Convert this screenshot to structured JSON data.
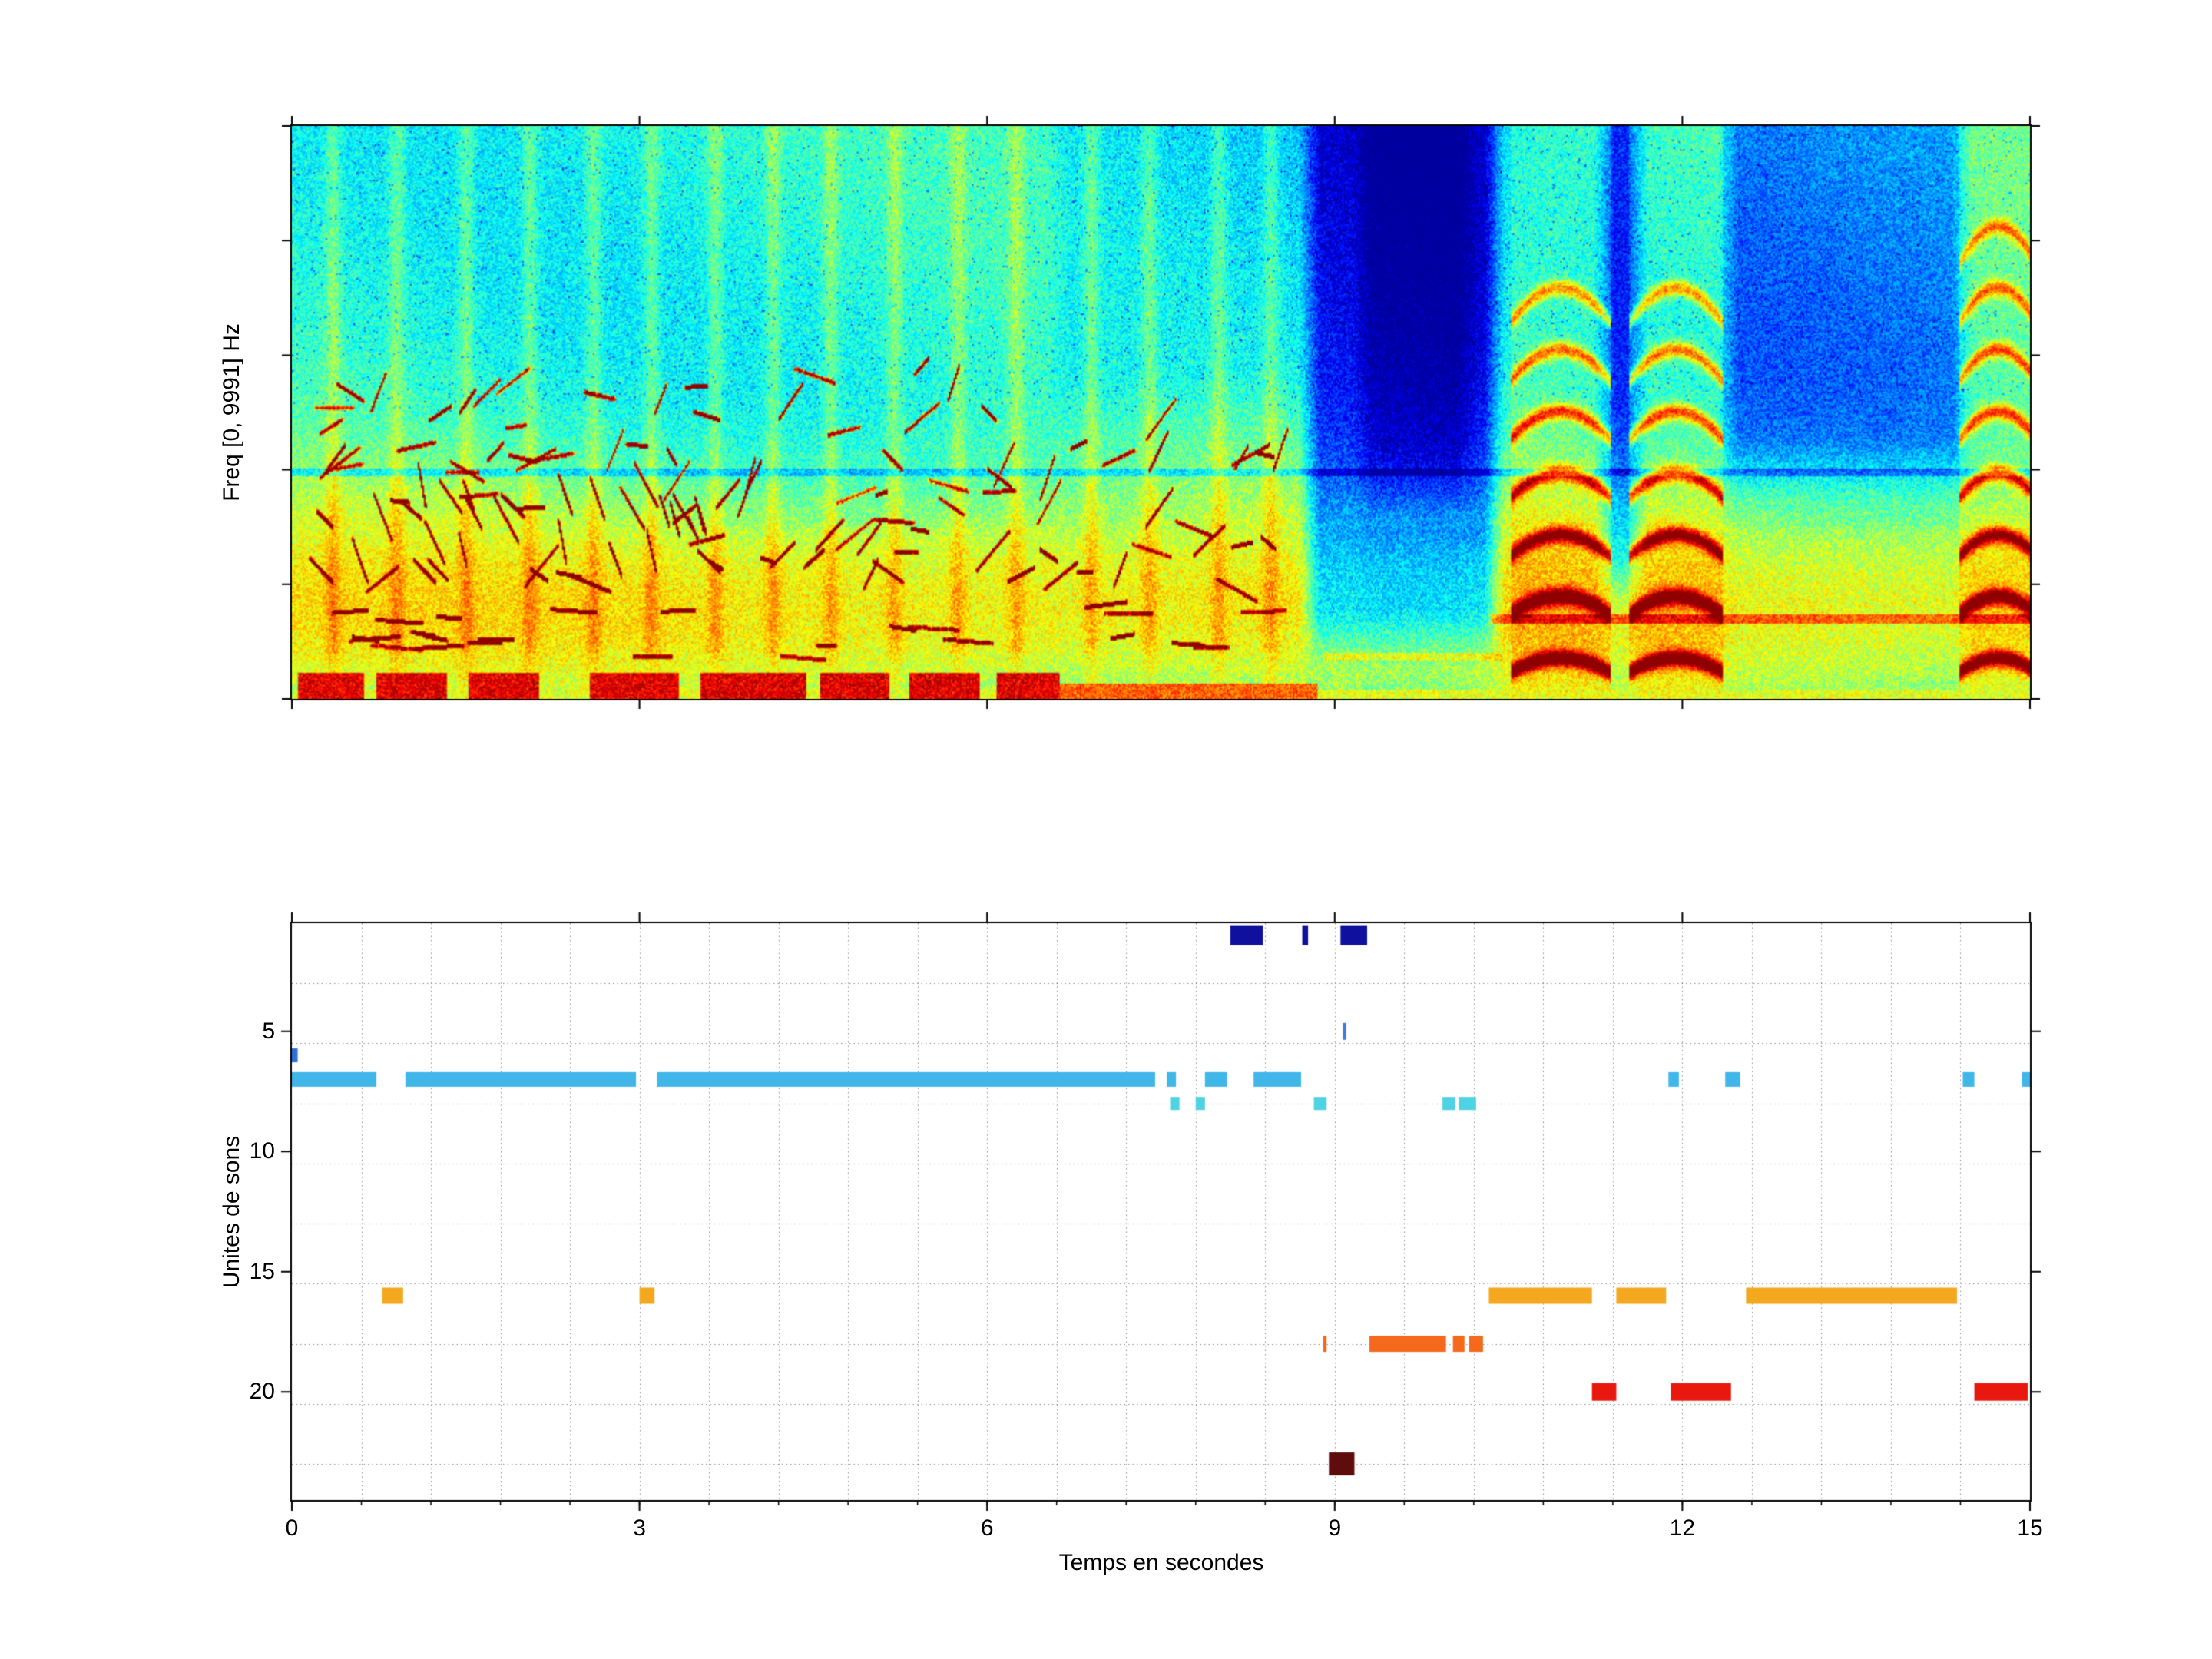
{
  "figure": {
    "background": "#ffffff"
  },
  "chart_data": [
    {
      "type": "heatmap",
      "name": "spectrogram",
      "ylabel": "Freq [0, 9991] Hz",
      "xlim": [
        0,
        15
      ],
      "freq_range_hz": [
        0,
        9991
      ],
      "colormap": "jet",
      "xticks": [
        0,
        3,
        6,
        9,
        12,
        15
      ],
      "quiet_zones": [
        {
          "t": [
            8.78,
            10.38
          ],
          "fmin": 0.03,
          "depth": 0.3
        },
        {
          "t": [
            9.25,
            10.15
          ],
          "fmin": 0.3,
          "depth": 0.1
        },
        {
          "t": [
            11.33,
            11.62
          ],
          "fmin": 0.12,
          "depth": 0.22
        },
        {
          "t": [
            12.4,
            14.42
          ],
          "fmin": 0.33,
          "depth": 0.16
        },
        {
          "t": [
            6.6,
            8.75
          ],
          "fmin": 0.45,
          "depth": 0.06
        }
      ],
      "harmonic_stacks": [
        {
          "t_center": 10.95,
          "half_width": 0.43,
          "n_arcs": 7
        },
        {
          "t_center": 11.95,
          "half_width": 0.4,
          "n_arcs": 7
        },
        {
          "t_center": 14.73,
          "half_width": 0.33,
          "n_arcs": 8
        }
      ],
      "bottom_band_ranges": [
        [
          0.05,
          0.62
        ],
        [
          0.72,
          1.33
        ],
        [
          1.52,
          2.13
        ],
        [
          2.56,
          3.33
        ],
        [
          3.52,
          4.43
        ],
        [
          4.55,
          5.15
        ],
        [
          5.33,
          5.93
        ],
        [
          6.08,
          6.62
        ]
      ],
      "vertical_streaks": [
        0.35,
        0.9,
        1.5,
        2.05,
        2.6,
        3.1,
        3.65,
        4.15,
        4.65,
        5.2,
        5.75,
        6.25,
        6.9,
        7.4,
        8.0,
        8.45
      ]
    },
    {
      "type": "segments",
      "name": "unites-de-sons",
      "xlabel": "Temps en secondes",
      "ylabel": "Unites de sons",
      "xlim": [
        0,
        15
      ],
      "ylim": [
        0.5,
        24.5
      ],
      "y_inverted": true,
      "grid": {
        "x_step": 0.6,
        "y_step": 2.5,
        "style": "dotted"
      },
      "xticks": [
        {
          "v": 0,
          "label": "0"
        },
        {
          "v": 3,
          "label": "3"
        },
        {
          "v": 6,
          "label": "6"
        },
        {
          "v": 9,
          "label": "9"
        },
        {
          "v": 12,
          "label": "12"
        },
        {
          "v": 15,
          "label": "15"
        }
      ],
      "yticks": [
        {
          "v": 5,
          "label": "5"
        },
        {
          "v": 10,
          "label": "10"
        },
        {
          "v": 15,
          "label": "15"
        },
        {
          "v": 20,
          "label": "20"
        }
      ],
      "segments": [
        {
          "unit": 1,
          "start": 8.1,
          "end": 8.38,
          "color": "#10109e",
          "h": 26
        },
        {
          "unit": 1,
          "start": 8.72,
          "end": 8.77,
          "color": "#10109e",
          "h": 26
        },
        {
          "unit": 1,
          "start": 9.05,
          "end": 9.28,
          "color": "#10109e",
          "h": 26
        },
        {
          "unit": 5,
          "start": 9.07,
          "end": 9.1,
          "color": "#3f7de0",
          "h": 22
        },
        {
          "unit": 6,
          "start": 0.0,
          "end": 0.05,
          "color": "#2f6fd8",
          "h": 18
        },
        {
          "unit": 7,
          "start": 0.0,
          "end": 0.73,
          "color": "#41b6e9",
          "h": 19
        },
        {
          "unit": 7,
          "start": 0.98,
          "end": 2.97,
          "color": "#41b6e9",
          "h": 19
        },
        {
          "unit": 7,
          "start": 3.15,
          "end": 7.45,
          "color": "#41b6e9",
          "h": 19
        },
        {
          "unit": 7,
          "start": 7.55,
          "end": 7.63,
          "color": "#41b6e9",
          "h": 19
        },
        {
          "unit": 7,
          "start": 7.88,
          "end": 8.07,
          "color": "#41b6e9",
          "h": 19
        },
        {
          "unit": 7,
          "start": 8.3,
          "end": 8.71,
          "color": "#41b6e9",
          "h": 19
        },
        {
          "unit": 7,
          "start": 11.88,
          "end": 11.97,
          "color": "#41b6e9",
          "h": 19
        },
        {
          "unit": 7,
          "start": 12.37,
          "end": 12.5,
          "color": "#41b6e9",
          "h": 19
        },
        {
          "unit": 7,
          "start": 14.42,
          "end": 14.52,
          "color": "#41b6e9",
          "h": 19
        },
        {
          "unit": 7,
          "start": 14.93,
          "end": 15.0,
          "color": "#41b6e9",
          "h": 19
        },
        {
          "unit": 8,
          "start": 7.58,
          "end": 7.66,
          "color": "#4fd2e4",
          "h": 17
        },
        {
          "unit": 8,
          "start": 7.8,
          "end": 7.88,
          "color": "#4fd2e4",
          "h": 17
        },
        {
          "unit": 8,
          "start": 8.82,
          "end": 8.93,
          "color": "#4fd2e4",
          "h": 17
        },
        {
          "unit": 8,
          "start": 9.93,
          "end": 10.04,
          "color": "#4fd2e4",
          "h": 17
        },
        {
          "unit": 8,
          "start": 10.07,
          "end": 10.22,
          "color": "#4fd2e4",
          "h": 17
        },
        {
          "unit": 16,
          "start": 0.78,
          "end": 0.96,
          "color": "#f3a81f",
          "h": 21
        },
        {
          "unit": 16,
          "start": 3.0,
          "end": 3.13,
          "color": "#f3a81f",
          "h": 21
        },
        {
          "unit": 16,
          "start": 10.33,
          "end": 11.22,
          "color": "#f3a81f",
          "h": 21
        },
        {
          "unit": 16,
          "start": 11.43,
          "end": 11.86,
          "color": "#f3a81f",
          "h": 21
        },
        {
          "unit": 16,
          "start": 12.55,
          "end": 14.37,
          "color": "#f3a81f",
          "h": 21
        },
        {
          "unit": 18,
          "start": 8.9,
          "end": 8.93,
          "color": "#f4691c",
          "h": 21
        },
        {
          "unit": 18,
          "start": 9.3,
          "end": 9.96,
          "color": "#f4691c",
          "h": 21
        },
        {
          "unit": 18,
          "start": 10.02,
          "end": 10.12,
          "color": "#f4691c",
          "h": 21
        },
        {
          "unit": 18,
          "start": 10.16,
          "end": 10.28,
          "color": "#f4691c",
          "h": 21
        },
        {
          "unit": 20,
          "start": 11.22,
          "end": 11.43,
          "color": "#e8180f",
          "h": 23
        },
        {
          "unit": 20,
          "start": 11.9,
          "end": 12.42,
          "color": "#e8180f",
          "h": 23
        },
        {
          "unit": 20,
          "start": 14.52,
          "end": 14.98,
          "color": "#e8180f",
          "h": 23
        },
        {
          "unit": 23,
          "start": 8.95,
          "end": 9.17,
          "color": "#5e0c0c",
          "h": 30
        }
      ]
    }
  ]
}
